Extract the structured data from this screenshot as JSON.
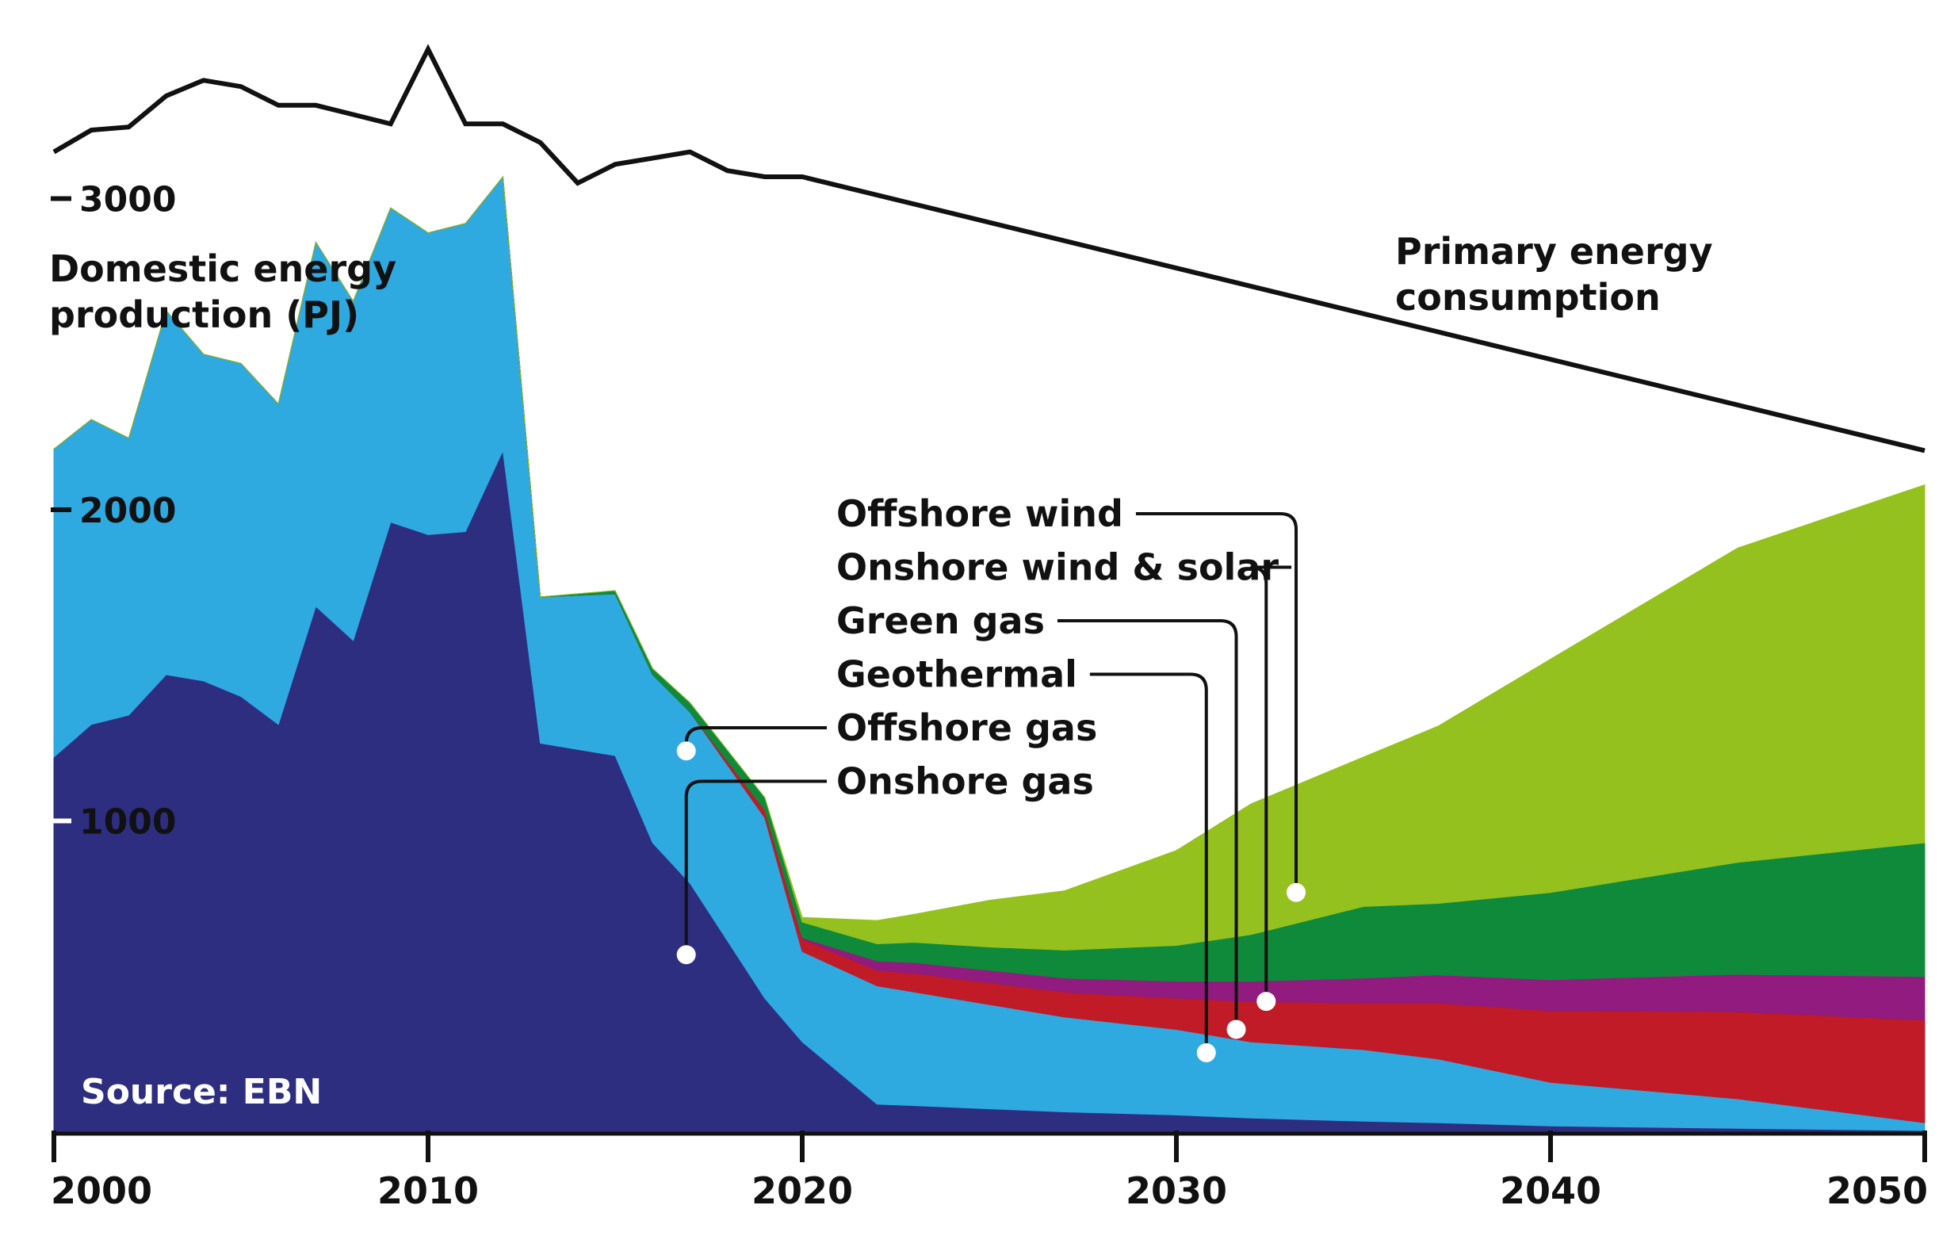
{
  "chart_data": {
    "type": "area",
    "title": "",
    "ylabel": "Domestic energy production (PJ)",
    "source_label": "Source: EBN",
    "x_ticks": [
      2000,
      2010,
      2020,
      2030,
      2040,
      2050
    ],
    "x_tick_labels": [
      "2000",
      "2010",
      "2020",
      "2030",
      "2040",
      "2050"
    ],
    "y_ticks": [
      1000,
      2000,
      3000
    ],
    "y_tick_labels": [
      "1000",
      "2000",
      "3000"
    ],
    "xlim": [
      2000,
      2050
    ],
    "ylim": [
      0,
      3500
    ],
    "grid": false,
    "legend": "callout labels with leader lines, center of chart",
    "x": [
      2000,
      2001,
      2002,
      2003,
      2004,
      2005,
      2006,
      2007,
      2008,
      2009,
      2010,
      2011,
      2012,
      2013,
      2015,
      2016,
      2017,
      2019,
      2020,
      2022,
      2023,
      2025,
      2027,
      2030,
      2032,
      2035,
      2037,
      2040,
      2045,
      2050
    ],
    "series": [
      {
        "name": "Onshore gas",
        "color": "#2d2e80",
        "values": [
          1205,
          1310,
          1340,
          1470,
          1450,
          1400,
          1310,
          1690,
          1580,
          1960,
          1920,
          1930,
          2190,
          1250,
          1210,
          930,
          800,
          430,
          290,
          90,
          85,
          75,
          65,
          55,
          45,
          35,
          30,
          20,
          12,
          5
        ]
      },
      {
        "name": "Offshore gas",
        "color": "#2eaae1",
        "values": [
          990,
          980,
          890,
          1170,
          1050,
          1070,
          1030,
          1170,
          1090,
          1010,
          970,
          990,
          880,
          470,
          520,
          540,
          550,
          580,
          290,
          380,
          365,
          335,
          305,
          275,
          245,
          230,
          205,
          140,
          95,
          25
        ]
      },
      {
        "name": "Geothermal",
        "color": "#c01b26",
        "values": [
          0,
          0,
          0,
          0,
          0,
          0,
          0,
          0,
          0,
          0,
          0,
          0,
          0,
          0,
          0,
          0,
          0,
          25,
          40,
          50,
          60,
          70,
          80,
          100,
          130,
          150,
          180,
          230,
          280,
          330
        ]
      },
      {
        "name": "Green gas",
        "color": "#911b7e",
        "values": [
          0,
          0,
          0,
          0,
          0,
          0,
          0,
          0,
          0,
          0,
          0,
          0,
          0,
          0,
          0,
          0,
          0,
          0,
          5,
          30,
          35,
          40,
          45,
          55,
          65,
          80,
          90,
          100,
          120,
          140
        ]
      },
      {
        "name": "Onshore wind & solar",
        "color": "#0f8a3a",
        "values": [
          0,
          0,
          0,
          0,
          0,
          0,
          0,
          0,
          0,
          0,
          0,
          0,
          0,
          0,
          10,
          20,
          30,
          40,
          50,
          55,
          65,
          75,
          90,
          115,
          150,
          230,
          230,
          280,
          360,
          430
        ]
      },
      {
        "name": "Offshore wind",
        "color": "#95c11f",
        "values": [
          0,
          0,
          0,
          0,
          0,
          0,
          0,
          0,
          0,
          0,
          0,
          0,
          0,
          0,
          0,
          0,
          0,
          0,
          15,
          75,
          90,
          150,
          190,
          305,
          420,
          480,
          570,
          750,
          1010,
          1150
        ]
      }
    ],
    "consumption": {
      "name": "Primary energy consumption",
      "color": "#111111",
      "x": [
        2000,
        2001,
        2002,
        2003,
        2004,
        2005,
        2006,
        2007,
        2008,
        2009,
        2010,
        2011,
        2012,
        2013,
        2014,
        2015,
        2016,
        2017,
        2018,
        2019,
        2020,
        2050
      ],
      "values": [
        3150,
        3220,
        3230,
        3330,
        3380,
        3360,
        3300,
        3300,
        3270,
        3240,
        3480,
        3240,
        3240,
        3180,
        3050,
        3110,
        3130,
        3150,
        3090,
        3070,
        3070,
        2190
      ]
    },
    "callouts": [
      {
        "label": "Offshore wind",
        "series": "Offshore wind",
        "x": 2033.2,
        "y": 770
      },
      {
        "label": "Onshore wind & solar",
        "series": "Onshore wind & solar",
        "x": 2032.4,
        "y": 420
      },
      {
        "label": "Green gas",
        "series": "Green gas",
        "x": 2031.6,
        "y": 330
      },
      {
        "label": "Geothermal",
        "series": "Geothermal",
        "x": 2030.8,
        "y": 255
      },
      {
        "label": "Offshore gas",
        "series": "Offshore gas",
        "x": 2016.9,
        "y": 1225
      },
      {
        "label": "Onshore gas",
        "series": "Onshore gas",
        "x": 2016.9,
        "y": 570
      }
    ]
  }
}
